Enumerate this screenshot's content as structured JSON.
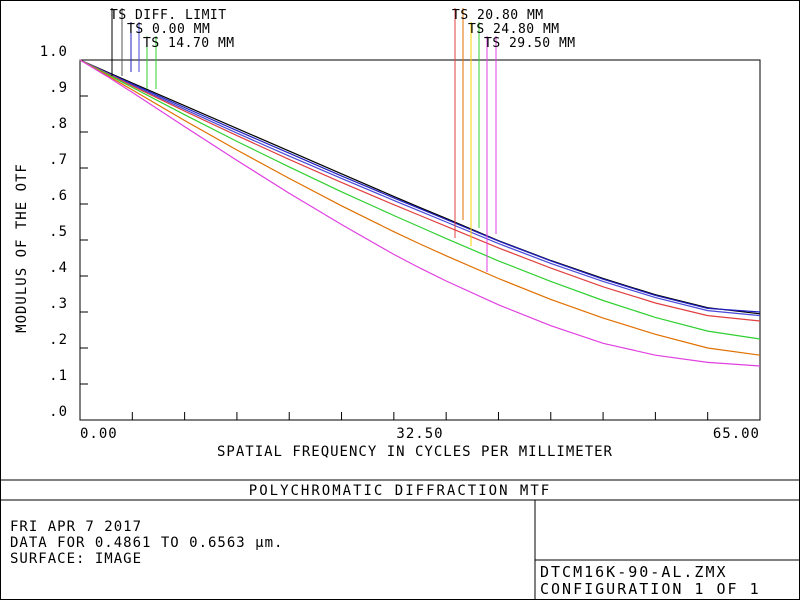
{
  "chart_data": {
    "type": "line",
    "title": "POLYCHROMATIC DIFFRACTION MTF",
    "xlabel": "SPATIAL FREQUENCY IN CYCLES PER MILLIMETER",
    "ylabel": "MODULUS OF THE OTF",
    "xlim": [
      0,
      65
    ],
    "ylim": [
      0,
      1
    ],
    "x_ticks": [
      "0.00",
      "32.50",
      "65.00"
    ],
    "y_ticks": [
      "1.0",
      ".9",
      ".8",
      ".7",
      ".6",
      ".5",
      ".4",
      ".3",
      ".2",
      ".1",
      ".0"
    ],
    "grid": false,
    "x": [
      0,
      2.5,
      5,
      10,
      15,
      20,
      25,
      30,
      32.5,
      35,
      40,
      45,
      50,
      55,
      60,
      65
    ],
    "series": [
      {
        "name": "TS DIFF. LIMIT",
        "color": "#000000",
        "values": [
          1.0,
          0.968,
          0.936,
          0.873,
          0.81,
          0.747,
          0.684,
          0.621,
          0.59,
          0.56,
          0.498,
          0.443,
          0.393,
          0.348,
          0.312,
          0.295
        ]
      },
      {
        "name": "TS 0.00 MM",
        "color": "#2020c0",
        "values": [
          1.0,
          0.966,
          0.933,
          0.868,
          0.804,
          0.741,
          0.678,
          0.617,
          0.587,
          0.557,
          0.497,
          0.442,
          0.391,
          0.346,
          0.31,
          0.3
        ]
      },
      {
        "name": "TS 14.70 MM",
        "color": "#4a4ad8",
        "values": [
          1.0,
          0.965,
          0.93,
          0.863,
          0.797,
          0.733,
          0.671,
          0.61,
          0.58,
          0.55,
          0.49,
          0.435,
          0.385,
          0.34,
          0.304,
          0.29
        ]
      },
      {
        "name": "TS 20.80 MM",
        "color": "#e04040",
        "values": [
          1.0,
          0.964,
          0.928,
          0.858,
          0.79,
          0.724,
          0.66,
          0.598,
          0.568,
          0.538,
          0.478,
          0.422,
          0.37,
          0.325,
          0.29,
          0.275
        ]
      },
      {
        "name": "TS 24.80 MM",
        "color": "#30d030",
        "values": [
          1.0,
          0.962,
          0.924,
          0.848,
          0.774,
          0.703,
          0.634,
          0.568,
          0.536,
          0.504,
          0.442,
          0.385,
          0.332,
          0.285,
          0.247,
          0.225
        ]
      },
      {
        "name": "TS 24.80 MM (orange)",
        "color": "#e07000",
        "values": [
          1.0,
          0.959,
          0.917,
          0.832,
          0.75,
          0.671,
          0.595,
          0.523,
          0.489,
          0.456,
          0.393,
          0.335,
          0.283,
          0.238,
          0.2,
          0.18
        ]
      },
      {
        "name": "TS 29.50 MM",
        "color": "#e040e0",
        "values": [
          1.0,
          0.956,
          0.91,
          0.815,
          0.721,
          0.63,
          0.543,
          0.46,
          0.422,
          0.386,
          0.32,
          0.262,
          0.213,
          0.18,
          0.16,
          0.15
        ]
      }
    ],
    "legend_left": [
      {
        "text": "TS DIFF. LIMIT",
        "markers": [
          "#000000",
          "#555555"
        ]
      },
      {
        "text": "TS 0.00 MM",
        "markers": [
          "#2020c0",
          "#4a4ad8"
        ]
      },
      {
        "text": "TS 14.70 MM",
        "markers": [
          "#30d030",
          "#30d030"
        ]
      }
    ],
    "legend_right": [
      {
        "text": "TS 20.80 MM",
        "markers": [
          "#e04040",
          "#e07000"
        ]
      },
      {
        "text": "TS 24.80 MM",
        "markers": [
          "#ffd000",
          "#30d030"
        ]
      },
      {
        "text": "TS 29.50 MM",
        "markers": [
          "#e040e0",
          "#e040e0"
        ]
      }
    ]
  },
  "footer": {
    "date": "FRI APR 7 2017",
    "data_range": "DATA FOR 0.4861 TO 0.6563 µm.",
    "surface": "SURFACE: IMAGE",
    "file_name": "DTCM16K-90-AL.ZMX",
    "configuration": "CONFIGURATION 1 OF 1"
  }
}
